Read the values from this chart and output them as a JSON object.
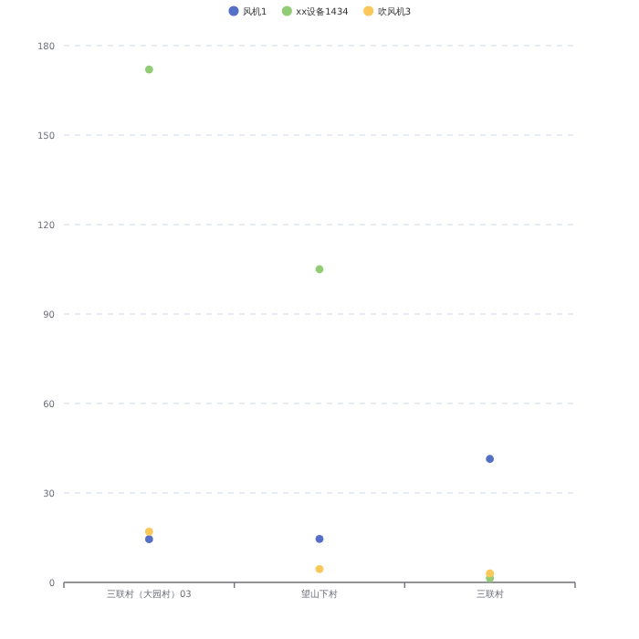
{
  "chart_data": {
    "type": "scatter",
    "categories": [
      "三联村（大园村）03",
      "望山下村",
      "三联村"
    ],
    "series": [
      {
        "name": "风机1",
        "color": "#5470c6",
        "values": [
          14.5,
          14.6,
          41.4
        ]
      },
      {
        "name": "xx设备1434",
        "color": "#91cc75",
        "values": [
          172,
          105,
          1.4
        ]
      },
      {
        "name": "吹风机3",
        "color": "#fac858",
        "values": [
          17,
          4.5,
          3
        ]
      }
    ],
    "ylim": [
      0,
      180
    ],
    "yticks": [
      0,
      30,
      60,
      90,
      120,
      150,
      180
    ],
    "grid": "y",
    "legend": "top",
    "marker": "circle"
  }
}
